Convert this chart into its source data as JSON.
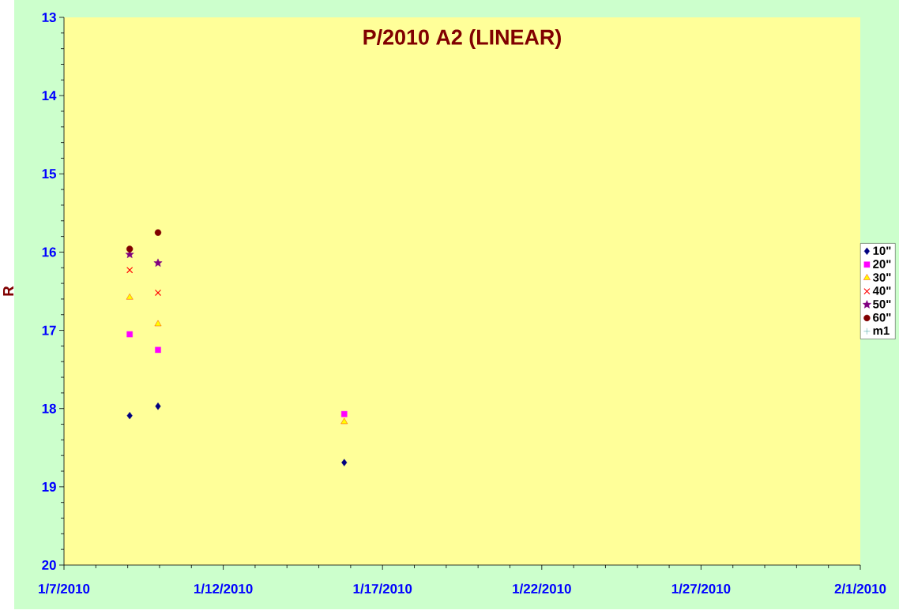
{
  "chart_data": {
    "type": "scatter",
    "title": "P/2010 A2 (LINEAR)",
    "ylabel": "R",
    "x": [
      "2010-01-09T01:30",
      "2010-01-09T22:50",
      "2010-01-15T19:10"
    ],
    "series": [
      {
        "name": "10\"",
        "color": "#000080",
        "marker": "diamond",
        "values": [
          18.09,
          17.97,
          18.69
        ]
      },
      {
        "name": "20\"",
        "color": "#ff00ff",
        "marker": "square",
        "values": [
          17.05,
          17.25,
          18.07
        ]
      },
      {
        "name": "30\"",
        "color": "#ffff00",
        "marker": "triangle",
        "values": [
          16.58,
          16.92,
          18.17
        ]
      },
      {
        "name": "40\"",
        "color": "#ff0000",
        "marker": "cross",
        "values": [
          16.23,
          16.52,
          null
        ]
      },
      {
        "name": "50\"",
        "color": "#800080",
        "marker": "star",
        "values": [
          16.03,
          16.14,
          null
        ]
      },
      {
        "name": "60\"",
        "color": "#800000",
        "marker": "circle",
        "values": [
          15.96,
          15.75,
          null
        ]
      },
      {
        "name": "m1",
        "color": "#008080",
        "marker": "plus",
        "values": [
          null,
          null,
          null
        ]
      }
    ],
    "xlim": [
      "2010-01-07",
      "2010-02-01"
    ],
    "xticks": [
      {
        "value": "2010-01-07",
        "label": "1/7/2010"
      },
      {
        "value": "2010-01-12",
        "label": "1/12/2010"
      },
      {
        "value": "2010-01-17",
        "label": "1/17/2010"
      },
      {
        "value": "2010-01-22",
        "label": "1/22/2010"
      },
      {
        "value": "2010-01-27",
        "label": "1/27/2010"
      },
      {
        "value": "2010-02-01",
        "label": "2/1/2010"
      }
    ],
    "ylim": [
      20,
      13
    ],
    "yticks": [
      13,
      14,
      15,
      16,
      17,
      18,
      19,
      20
    ],
    "legend": "right",
    "grid": false
  }
}
